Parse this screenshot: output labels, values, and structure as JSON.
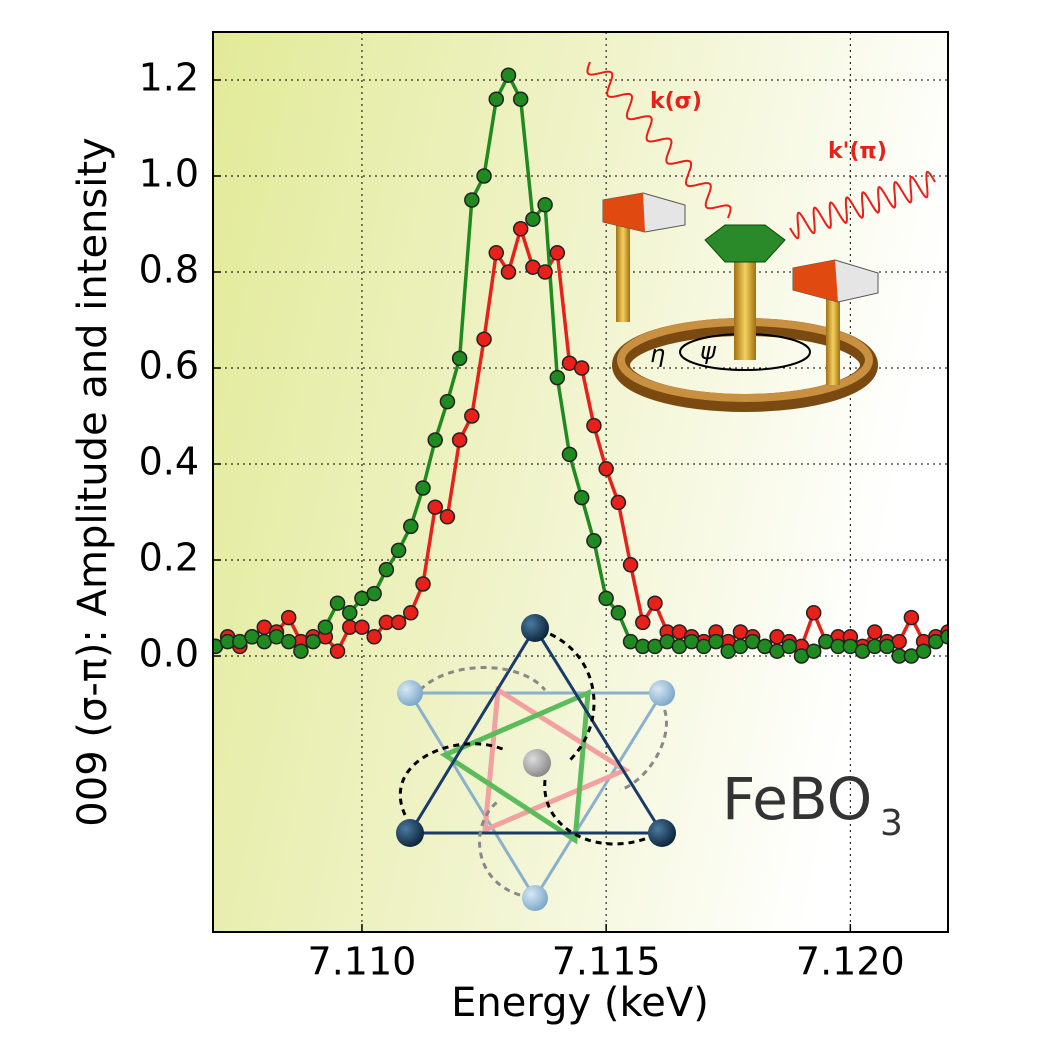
{
  "chart_data": {
    "type": "line",
    "xlabel": "Energy (keV)",
    "ylabel": "009 (σ-π): Amplitude and intensity",
    "annotations": [
      "k(σ)",
      "k'(π)",
      "η",
      "ψ",
      "FeBO",
      "3"
    ],
    "x": [
      7.107,
      7.10725,
      7.1075,
      7.10775,
      7.108,
      7.10825,
      7.1085,
      7.10875,
      7.109,
      7.10925,
      7.1095,
      7.10975,
      7.11,
      7.11025,
      7.1105,
      7.11075,
      7.111,
      7.11125,
      7.1115,
      7.11175,
      7.112,
      7.11225,
      7.1125,
      7.11275,
      7.113,
      7.11325,
      7.1135,
      7.11375,
      7.114,
      7.11425,
      7.1145,
      7.11475,
      7.115,
      7.11525,
      7.1155,
      7.11575,
      7.116,
      7.11625,
      7.1165,
      7.11675,
      7.117,
      7.11725,
      7.1175,
      7.11775,
      7.118,
      7.11825,
      7.1185,
      7.11875,
      7.119,
      7.11925,
      7.1195,
      7.11975,
      7.12,
      7.12025,
      7.1205,
      7.12075,
      7.121,
      7.12125,
      7.1215,
      7.12175,
      7.122
    ],
    "series": [
      {
        "color": "#e8201a",
        "values": [
          0.02,
          0.04,
          0.02,
          0.04,
          0.06,
          0.05,
          0.08,
          0.03,
          0.04,
          0.04,
          0.01,
          0.06,
          0.06,
          0.04,
          0.07,
          0.07,
          0.09,
          0.15,
          0.31,
          0.29,
          0.45,
          0.5,
          0.66,
          0.84,
          0.8,
          0.89,
          0.81,
          0.8,
          0.84,
          0.61,
          0.6,
          0.48,
          0.39,
          0.32,
          0.19,
          0.07,
          0.11,
          0.05,
          0.05,
          0.04,
          0.03,
          0.05,
          0.03,
          0.05,
          0.04,
          0.02,
          0.04,
          0.03,
          0.02,
          0.09,
          0.03,
          0.04,
          0.04,
          0.02,
          0.05,
          0.03,
          0.03,
          0.08,
          0.03,
          0.04,
          0.05
        ]
      },
      {
        "color": "#1f8a1f",
        "values": [
          0.02,
          0.03,
          0.03,
          0.04,
          0.03,
          0.04,
          0.03,
          0.01,
          0.03,
          0.06,
          0.11,
          0.09,
          0.12,
          0.13,
          0.18,
          0.22,
          0.27,
          0.35,
          0.45,
          0.53,
          0.62,
          0.95,
          1.0,
          1.16,
          1.21,
          1.16,
          0.91,
          0.94,
          0.58,
          0.42,
          0.33,
          0.24,
          0.12,
          0.09,
          0.03,
          0.02,
          0.02,
          0.03,
          0.02,
          0.03,
          0.02,
          0.03,
          0.01,
          0.02,
          0.03,
          0.02,
          0.01,
          0.02,
          0.0,
          0.01,
          0.03,
          0.02,
          0.02,
          0.01,
          0.02,
          0.02,
          0.0,
          0.0,
          0.01,
          0.03,
          0.04
        ]
      }
    ],
    "xlim": [
      7.10695,
      7.122
    ],
    "ylim": [
      -0.575,
      1.3
    ],
    "xticks": [
      {
        "value": 7.11,
        "label": "7.110"
      },
      {
        "value": 7.115,
        "label": "7.115"
      },
      {
        "value": 7.12,
        "label": "7.120"
      }
    ],
    "yticks": [
      {
        "value": 0,
        "label": "0.0"
      },
      0.2,
      0.4,
      0.6,
      0.8,
      {
        "value": 1,
        "label": "1.0"
      },
      1.2
    ],
    "grid": true
  }
}
